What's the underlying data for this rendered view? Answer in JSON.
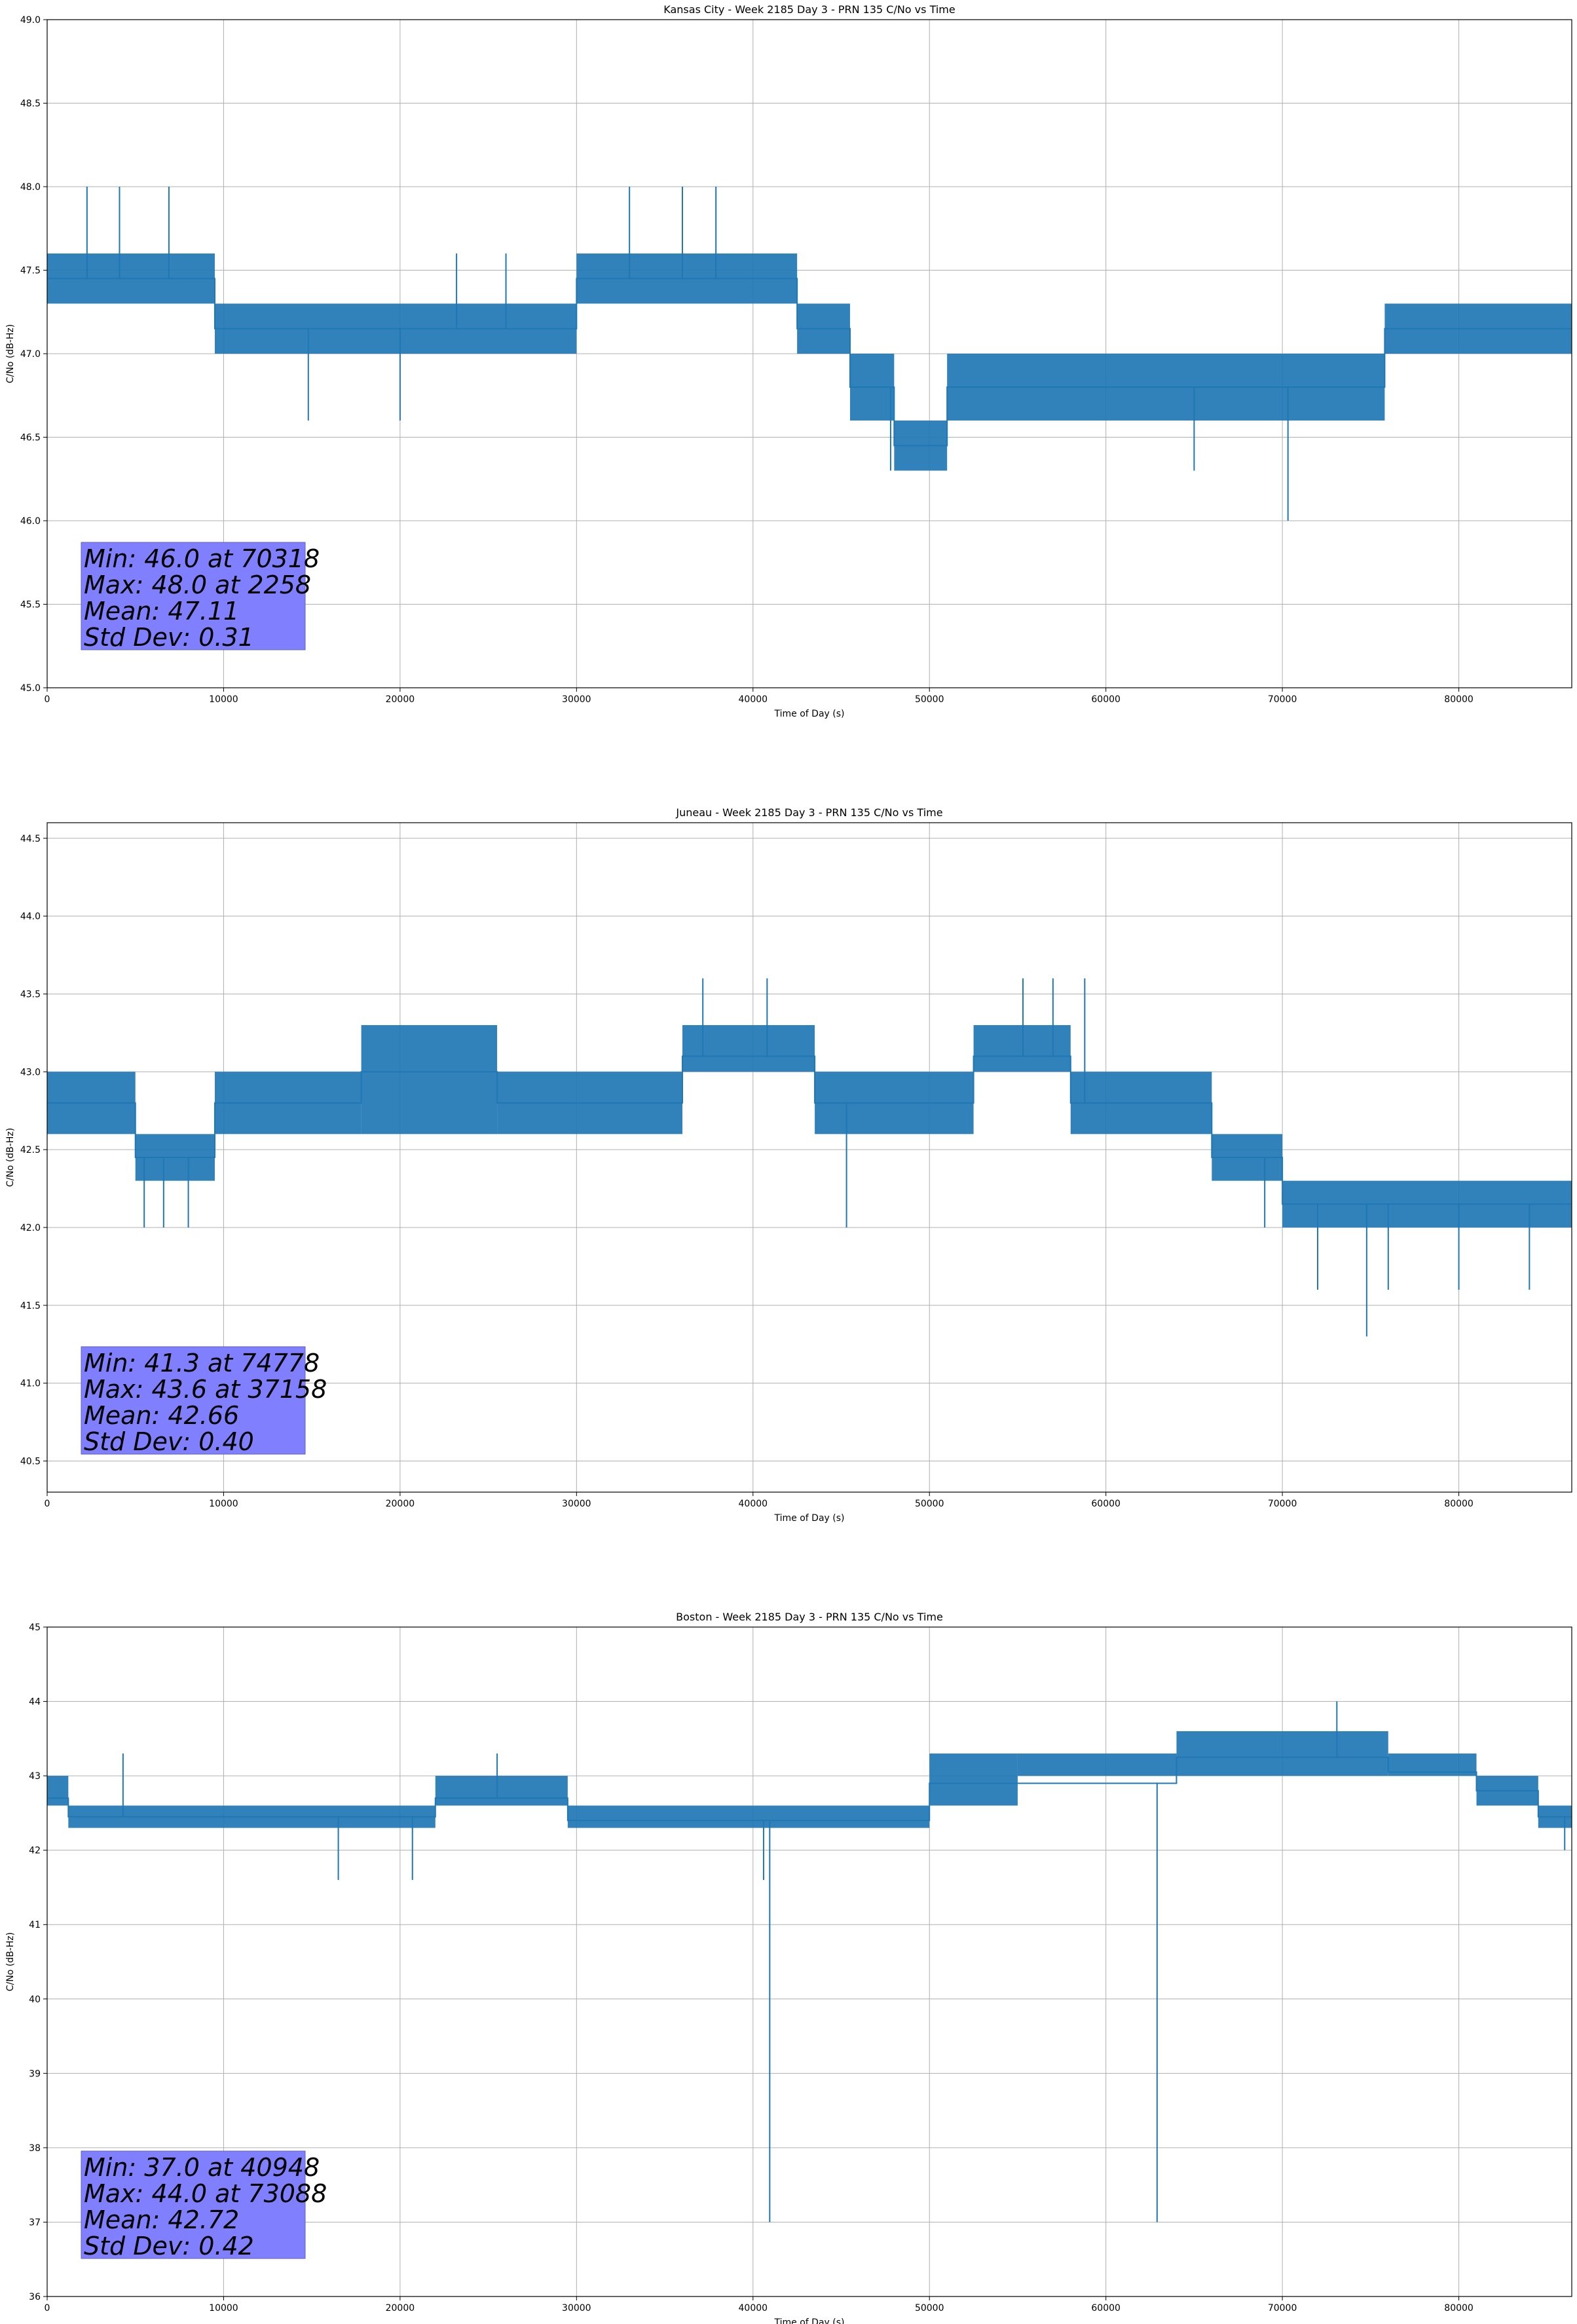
{
  "chart_data": [
    {
      "type": "line",
      "title": "Kansas City - Week 2185 Day 3 - PRN 135 C/No vs Time",
      "xlabel": "Time of Day (s)",
      "ylabel": "C/No (dB-Hz)",
      "xlim": [
        0,
        86400
      ],
      "ylim": [
        45.0,
        49.0
      ],
      "xticks": [
        0,
        10000,
        20000,
        30000,
        40000,
        50000,
        60000,
        70000,
        80000
      ],
      "yticks": [
        45.0,
        45.5,
        46.0,
        46.5,
        47.0,
        47.5,
        48.0,
        48.5,
        49.0
      ],
      "ytick_labels": [
        "45.0",
        "45.5",
        "46.0",
        "46.5",
        "47.0",
        "47.5",
        "48.0",
        "48.5",
        "49.0"
      ],
      "grid": true,
      "line_color": "#1f77b4",
      "series": [
        {
          "x": [
            0,
            9500,
            9500,
            30000,
            30000,
            42500,
            42500,
            45500,
            45500,
            48000,
            48000,
            51000,
            51000,
            75800,
            75800,
            86400
          ],
          "y": [
            47.45,
            47.45,
            47.15,
            47.15,
            47.45,
            47.45,
            47.15,
            47.15,
            46.8,
            46.8,
            46.45,
            46.45,
            46.8,
            46.8,
            47.15,
            47.15
          ]
        }
      ],
      "band": {
        "segments": [
          {
            "x": [
              0,
              9500
            ],
            "low": 47.3,
            "high": 47.6
          },
          {
            "x": [
              9500,
              30000
            ],
            "low": 47.0,
            "high": 47.3
          },
          {
            "x": [
              30000,
              42500
            ],
            "low": 47.3,
            "high": 47.6
          },
          {
            "x": [
              42500,
              45500
            ],
            "low": 47.0,
            "high": 47.3
          },
          {
            "x": [
              45500,
              48000
            ],
            "low": 46.6,
            "high": 47.0
          },
          {
            "x": [
              48000,
              51000
            ],
            "low": 46.3,
            "high": 46.6
          },
          {
            "x": [
              51000,
              75800
            ],
            "low": 46.6,
            "high": 47.0
          },
          {
            "x": [
              75800,
              86400
            ],
            "low": 47.0,
            "high": 47.3
          }
        ],
        "spikes": [
          [
            2258,
            48.0
          ],
          [
            4100,
            48.0
          ],
          [
            6900,
            48.0
          ],
          [
            33000,
            48.0
          ],
          [
            36000,
            48.0
          ],
          [
            37900,
            48.0
          ],
          [
            70318,
            46.0
          ],
          [
            47800,
            46.3
          ],
          [
            65000,
            46.3
          ],
          [
            14800,
            46.6
          ],
          [
            20000,
            46.6
          ],
          [
            23200,
            47.6
          ],
          [
            26000,
            47.6
          ]
        ]
      },
      "stats": [
        "Min: 46.0 at 70318",
        "Max: 48.0 at 2258",
        "Mean: 47.11",
        "Std Dev: 0.31"
      ]
    },
    {
      "type": "line",
      "title": "Juneau - Week 2185 Day 3 - PRN 135 C/No vs Time",
      "xlabel": "Time of Day (s)",
      "ylabel": "C/No (dB-Hz)",
      "xlim": [
        0,
        86400
      ],
      "ylim": [
        40.3,
        44.6
      ],
      "xticks": [
        0,
        10000,
        20000,
        30000,
        40000,
        50000,
        60000,
        70000,
        80000
      ],
      "yticks": [
        40.5,
        41.0,
        41.5,
        42.0,
        42.5,
        43.0,
        43.5,
        44.0,
        44.5
      ],
      "ytick_labels": [
        "40.5",
        "41.0",
        "41.5",
        "42.0",
        "42.5",
        "43.0",
        "43.5",
        "44.0",
        "44.5"
      ],
      "grid": true,
      "line_color": "#1f77b4",
      "series": [
        {
          "x": [
            0,
            5000,
            5000,
            9500,
            9500,
            17800,
            17800,
            25500,
            25500,
            36000,
            36000,
            43500,
            43500,
            52500,
            52500,
            58000,
            58000,
            66000,
            66000,
            70000,
            70000,
            86400
          ],
          "y": [
            42.8,
            42.8,
            42.45,
            42.45,
            42.8,
            42.8,
            43.0,
            43.0,
            42.8,
            42.8,
            43.1,
            43.1,
            42.8,
            42.8,
            43.1,
            43.1,
            42.8,
            42.8,
            42.45,
            42.45,
            42.15,
            42.15
          ]
        }
      ],
      "band": {
        "segments": [
          {
            "x": [
              0,
              5000
            ],
            "low": 42.6,
            "high": 43.0
          },
          {
            "x": [
              5000,
              9500
            ],
            "low": 42.3,
            "high": 42.6
          },
          {
            "x": [
              9500,
              17800
            ],
            "low": 42.6,
            "high": 43.0
          },
          {
            "x": [
              17800,
              25500
            ],
            "low": 42.6,
            "high": 43.3
          },
          {
            "x": [
              25500,
              36000
            ],
            "low": 42.6,
            "high": 43.0
          },
          {
            "x": [
              36000,
              43500
            ],
            "low": 43.0,
            "high": 43.3
          },
          {
            "x": [
              43500,
              52500
            ],
            "low": 42.6,
            "high": 43.0
          },
          {
            "x": [
              52500,
              58000
            ],
            "low": 43.0,
            "high": 43.3
          },
          {
            "x": [
              58000,
              66000
            ],
            "low": 42.6,
            "high": 43.0
          },
          {
            "x": [
              66000,
              70000
            ],
            "low": 42.3,
            "high": 42.6
          },
          {
            "x": [
              70000,
              86400
            ],
            "low": 42.0,
            "high": 42.3
          }
        ],
        "spikes": [
          [
            37158,
            43.6
          ],
          [
            40800,
            43.6
          ],
          [
            55300,
            43.6
          ],
          [
            57000,
            43.6
          ],
          [
            58800,
            43.6
          ],
          [
            74778,
            41.3
          ],
          [
            5500,
            42.0
          ],
          [
            6600,
            42.0
          ],
          [
            8000,
            42.0
          ],
          [
            45300,
            42.0
          ],
          [
            69000,
            42.0
          ],
          [
            72000,
            41.6
          ],
          [
            76000,
            41.6
          ],
          [
            80000,
            41.6
          ],
          [
            84000,
            41.6
          ]
        ]
      },
      "stats": [
        "Min: 41.3 at 74778",
        "Max: 43.6 at 37158",
        "Mean: 42.66",
        "Std Dev: 0.40"
      ]
    },
    {
      "type": "line",
      "title": "Boston - Week 2185 Day 3 - PRN 135 C/No vs Time",
      "xlabel": "Time of Day (s)",
      "ylabel": "C/No (dB-Hz)",
      "xlim": [
        0,
        86400
      ],
      "ylim": [
        36,
        45
      ],
      "xticks": [
        0,
        10000,
        20000,
        30000,
        40000,
        50000,
        60000,
        70000,
        80000
      ],
      "yticks": [
        36,
        37,
        38,
        39,
        40,
        41,
        42,
        43,
        44,
        45
      ],
      "ytick_labels": [
        "36",
        "37",
        "38",
        "39",
        "40",
        "41",
        "42",
        "43",
        "44",
        "45"
      ],
      "grid": true,
      "line_color": "#1f77b4",
      "series": [
        {
          "x": [
            0,
            1200,
            1200,
            22000,
            22000,
            29500,
            29500,
            50000,
            50000,
            64000,
            64000,
            76000,
            76000,
            81000,
            81000,
            84500,
            84500,
            86400
          ],
          "y": [
            42.7,
            42.7,
            42.45,
            42.45,
            42.7,
            42.7,
            42.4,
            42.4,
            42.9,
            42.9,
            43.25,
            43.25,
            43.05,
            43.05,
            42.8,
            42.8,
            42.45,
            42.45
          ]
        }
      ],
      "band": {
        "segments": [
          {
            "x": [
              0,
              1200
            ],
            "low": 42.6,
            "high": 43.0
          },
          {
            "x": [
              1200,
              22000
            ],
            "low": 42.3,
            "high": 42.6
          },
          {
            "x": [
              22000,
              29500
            ],
            "low": 42.6,
            "high": 43.0
          },
          {
            "x": [
              29500,
              50000
            ],
            "low": 42.3,
            "high": 42.6
          },
          {
            "x": [
              50000,
              55000
            ],
            "low": 42.6,
            "high": 43.3
          },
          {
            "x": [
              55000,
              64000
            ],
            "low": 43.0,
            "high": 43.3
          },
          {
            "x": [
              64000,
              76000
            ],
            "low": 43.0,
            "high": 43.6
          },
          {
            "x": [
              76000,
              81000
            ],
            "low": 43.0,
            "high": 43.3
          },
          {
            "x": [
              81000,
              84500
            ],
            "low": 42.6,
            "high": 43.0
          },
          {
            "x": [
              84500,
              86400
            ],
            "low": 42.3,
            "high": 42.6
          }
        ],
        "spikes": [
          [
            4300,
            43.3
          ],
          [
            16500,
            41.6
          ],
          [
            20700,
            41.6
          ],
          [
            25500,
            43.3
          ],
          [
            40948,
            37.0
          ],
          [
            40600,
            41.6
          ],
          [
            62900,
            37.0
          ],
          [
            73088,
            44.0
          ],
          [
            86000,
            42.0
          ]
        ]
      },
      "stats": [
        "Min: 37.0 at 40948",
        "Max: 44.0 at 73088",
        "Mean: 42.72",
        "Std Dev: 0.42"
      ]
    }
  ]
}
